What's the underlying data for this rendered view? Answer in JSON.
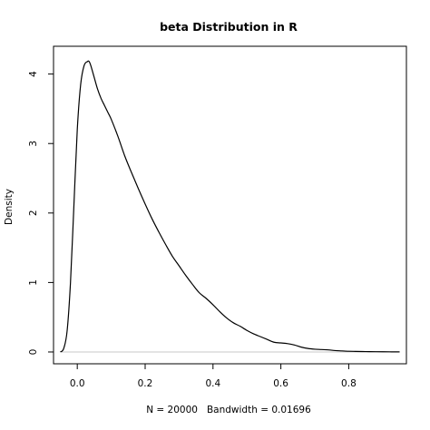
{
  "chart_data": {
    "type": "line",
    "title": "beta Distribution in R",
    "xlabel": "N = 20000   Bandwidth = 0.01696",
    "ylabel": "Density",
    "xlim": [
      -0.07,
      0.97
    ],
    "ylim": [
      -0.17,
      4.4
    ],
    "x_ticks": [
      0.0,
      0.2,
      0.4,
      0.6,
      0.8
    ],
    "x_tick_labels": [
      "0.0",
      "0.2",
      "0.4",
      "0.6",
      "0.8"
    ],
    "y_ticks": [
      0,
      1,
      2,
      3,
      4
    ],
    "y_tick_labels": [
      "0",
      "1",
      "2",
      "3",
      "4"
    ],
    "grid": false,
    "legend": false,
    "zero_baseline": true,
    "series": [
      {
        "x": [
          -0.05,
          -0.04,
          -0.03,
          -0.02,
          -0.01,
          0.0,
          0.01,
          0.02,
          0.03,
          0.035,
          0.04,
          0.05,
          0.06,
          0.07,
          0.08,
          0.09,
          0.1,
          0.12,
          0.14,
          0.16,
          0.18,
          0.2,
          0.22,
          0.24,
          0.26,
          0.28,
          0.3,
          0.32,
          0.34,
          0.36,
          0.38,
          0.4,
          0.42,
          0.44,
          0.46,
          0.48,
          0.5,
          0.52,
          0.54,
          0.56,
          0.58,
          0.6,
          0.62,
          0.64,
          0.66,
          0.68,
          0.7,
          0.72,
          0.74,
          0.76,
          0.78,
          0.8,
          0.82,
          0.84,
          0.86,
          0.88,
          0.9,
          0.92,
          0.94,
          0.95
        ],
        "y": [
          0.0,
          0.05,
          0.3,
          1.0,
          2.1,
          3.2,
          3.85,
          4.12,
          4.18,
          4.18,
          4.12,
          3.95,
          3.78,
          3.65,
          3.55,
          3.45,
          3.35,
          3.1,
          2.82,
          2.58,
          2.35,
          2.13,
          1.92,
          1.73,
          1.55,
          1.38,
          1.24,
          1.1,
          0.97,
          0.85,
          0.77,
          0.68,
          0.58,
          0.49,
          0.42,
          0.37,
          0.31,
          0.26,
          0.22,
          0.18,
          0.14,
          0.13,
          0.12,
          0.1,
          0.07,
          0.05,
          0.04,
          0.035,
          0.03,
          0.02,
          0.015,
          0.01,
          0.008,
          0.006,
          0.005,
          0.004,
          0.003,
          0.002,
          0.001,
          0.001
        ]
      }
    ]
  }
}
